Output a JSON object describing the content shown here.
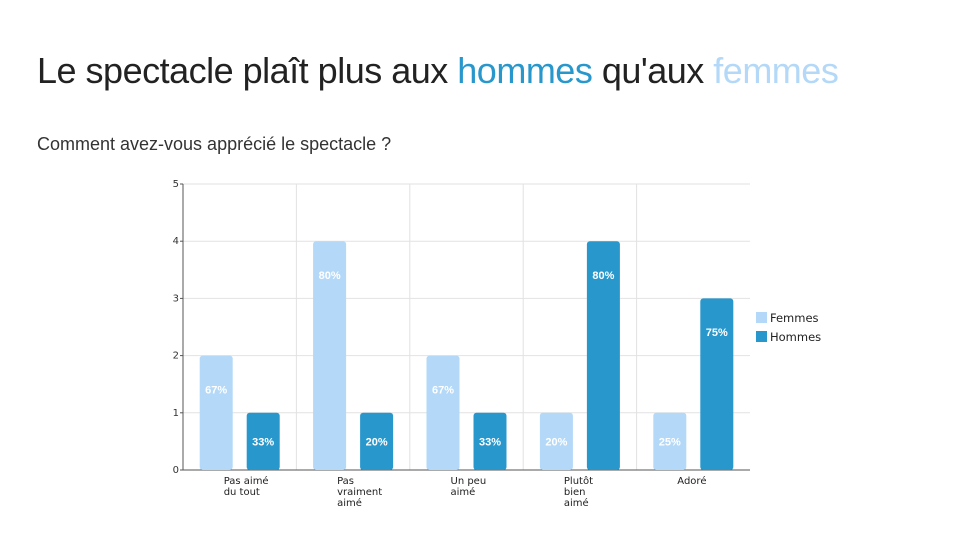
{
  "title": {
    "part1": "Le spectacle plaît plus aux ",
    "hommes": "hommes",
    "part2": " qu'aux ",
    "femmes": "femmes"
  },
  "subtitle": "Comment avez-vous apprécié le spectacle ?",
  "colors": {
    "femmes": "#b3d8f8",
    "hommes": "#2897cc",
    "grid": "#e2e2e2",
    "axis": "#555555"
  },
  "chart_data": {
    "type": "bar",
    "categories": [
      [
        "Pas aimé",
        "du tout"
      ],
      [
        "Pas",
        "vraiment",
        "aimé"
      ],
      [
        "Un peu",
        "aimé"
      ],
      [
        "Plutôt",
        "bien",
        "aimé"
      ],
      [
        "Adoré"
      ]
    ],
    "series": [
      {
        "name": "Femmes",
        "values": [
          2,
          4,
          2,
          1,
          1
        ],
        "labels": [
          "67%",
          "80%",
          "67%",
          "20%",
          "25%"
        ]
      },
      {
        "name": "Hommes",
        "values": [
          1,
          1,
          1,
          4,
          3
        ],
        "labels": [
          "33%",
          "20%",
          "33%",
          "80%",
          "75%"
        ]
      }
    ],
    "yticks": [
      0,
      1,
      2,
      3,
      4,
      5
    ],
    "ylim": [
      0,
      5
    ],
    "grid": true,
    "legend": "right"
  }
}
